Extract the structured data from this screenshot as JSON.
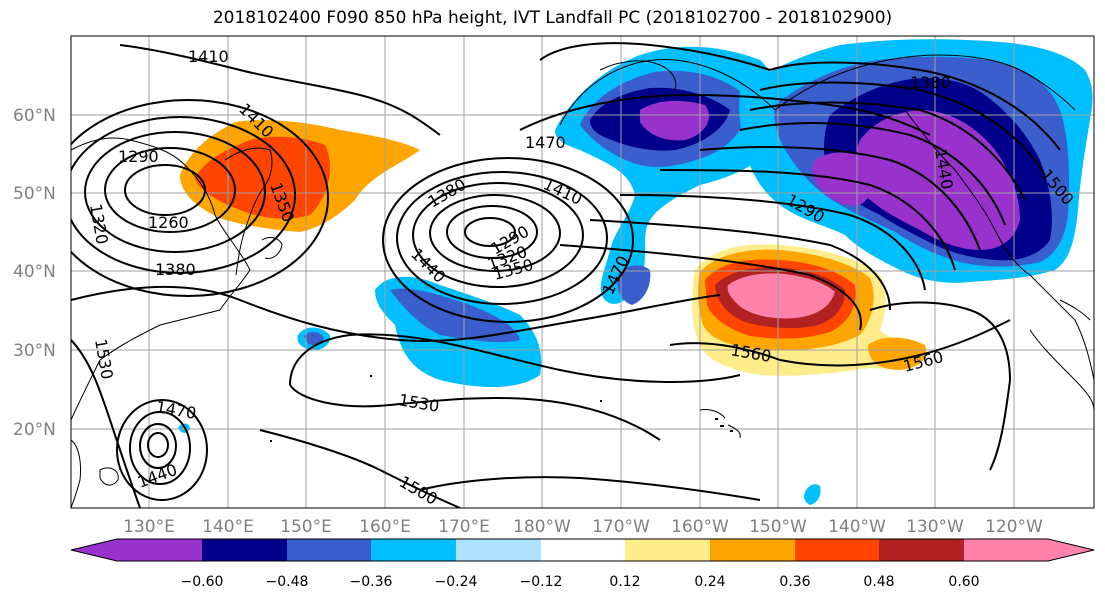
{
  "title": "2018102400 F090 850 hPa height, IVT Landfall PC (2018102700 - 2018102900)",
  "lat_labels": [
    "60°N",
    "50°N",
    "40°N",
    "30°N",
    "20°N"
  ],
  "lon_labels": [
    "130°E",
    "140°E",
    "150°E",
    "160°E",
    "170°E",
    "180°W",
    "170°W",
    "160°W",
    "150°W",
    "140°W",
    "130°W",
    "120°W"
  ],
  "colorbar": {
    "ticks": [
      "−0.60",
      "−0.48",
      "−0.36",
      "−0.24",
      "−0.12",
      "0.12",
      "0.24",
      "0.36",
      "0.48",
      "0.60"
    ],
    "colors": [
      "#9932cc",
      "#00008b",
      "#3a5fcd",
      "#00bfff",
      "#b0e2ff",
      "#ffffff",
      "#ffec8b",
      "#ffa500",
      "#ff4500",
      "#b22222",
      "#ff82ab",
      "#ff82ab"
    ]
  },
  "contour_labels": [
    "1410",
    "1290",
    "1320",
    "1410",
    "1350",
    "1260",
    "1380",
    "1470",
    "1380",
    "1410",
    "1440",
    "1290",
    "1320",
    "1350",
    "1470",
    "1380",
    "1290",
    "1440",
    "1500",
    "1530",
    "1470",
    "1440",
    "1560",
    "1530",
    "1560",
    "1500"
  ]
}
